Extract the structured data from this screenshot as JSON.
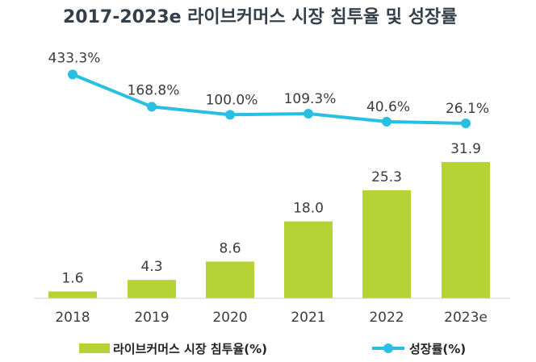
{
  "chart_data": {
    "type": "bar",
    "title": "2017-2023e 라이브커머스 시장 침투율 및 성장률",
    "categories": [
      "2018",
      "2019",
      "2020",
      "2021",
      "2022",
      "2023e"
    ],
    "series": [
      {
        "name": "라이브커머스 시장 침투율(%)",
        "type": "bar",
        "values": [
          1.6,
          4.3,
          8.6,
          18.0,
          25.3,
          31.9
        ],
        "labels": [
          "1.6",
          "4.3",
          "8.6",
          "18.0",
          "25.3",
          "31.9"
        ],
        "color": "#b5d334"
      },
      {
        "name": "성장률(%)",
        "type": "line",
        "values": [
          433.3,
          168.8,
          100.0,
          109.3,
          40.6,
          26.1
        ],
        "labels": [
          "433.3%",
          "168.8%",
          "100.0%",
          "109.3%",
          "40.6%",
          "26.1%"
        ],
        "color": "#29bfe3"
      }
    ],
    "bar_ylim": [
      0,
      35
    ],
    "grid": false,
    "legend_position": "bottom"
  }
}
